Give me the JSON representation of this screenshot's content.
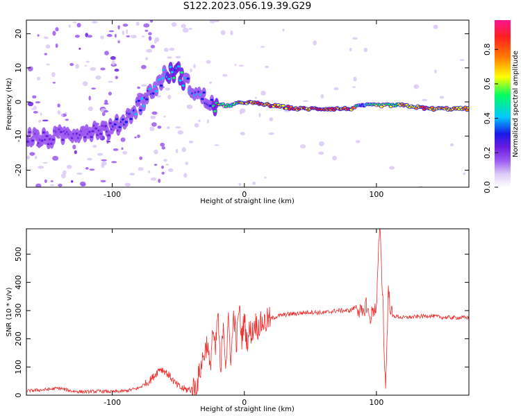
{
  "title": "S122.2023.056.19.39.G29",
  "colors": {
    "snr_line": "#ee2a2a",
    "frame": "#000000",
    "colormap": [
      "#ffffff",
      "#dcc9f6",
      "#9b59f0",
      "#6a1be0",
      "#1a1ae6",
      "#00c8ff",
      "#00ff60",
      "#ffff00",
      "#ff7a00",
      "#ff2020",
      "#ff1493"
    ]
  },
  "chart_data": [
    {
      "type": "heatmap",
      "title": "S122.2023.056.19.39.G29",
      "xlabel": "Height of straight line (km)",
      "ylabel": "Frequency (Hz)",
      "xlim": [
        -165,
        170
      ],
      "ylim": [
        -25,
        24
      ],
      "x_ticks": [
        -100,
        0,
        100
      ],
      "y_ticks": [
        -20,
        -10,
        0,
        10,
        20
      ],
      "colorbar": {
        "label": "Normalized spectral amplitude",
        "range": [
          0,
          0.97
        ],
        "ticks": [
          0.0,
          0.2,
          0.4,
          0.6,
          0.8
        ]
      },
      "ridge": {
        "x": [
          -165,
          -150,
          -130,
          -110,
          -100,
          -90,
          -80,
          -70,
          -60,
          -50,
          -45,
          -40,
          -35,
          -30,
          -25,
          -20,
          -10,
          0,
          20,
          40,
          60,
          80,
          90,
          100,
          120,
          140,
          160,
          170
        ],
        "frequency": [
          -10,
          -11,
          -9,
          -8,
          -8,
          -5,
          -1,
          3,
          8,
          9,
          6,
          4,
          2,
          1,
          -1,
          -1,
          -1,
          0,
          -1,
          -2,
          -2,
          -2,
          -1,
          -1,
          -1,
          -2,
          -2,
          -2
        ],
        "amplitude": [
          0.3,
          0.35,
          0.3,
          0.3,
          0.35,
          0.45,
          0.5,
          0.55,
          0.55,
          0.6,
          0.55,
          0.5,
          0.5,
          0.45,
          0.5,
          0.8,
          0.7,
          0.9,
          0.95,
          0.9,
          0.95,
          0.9,
          0.5,
          0.7,
          0.85,
          0.9,
          0.85,
          0.8
        ]
      }
    },
    {
      "type": "line",
      "xlabel": "Height of straight line (km)",
      "ylabel": "SNR (10 * v/v)",
      "xlim": [
        -165,
        170
      ],
      "ylim": [
        0,
        590
      ],
      "x_ticks": [
        -100,
        0,
        100
      ],
      "y_ticks": [
        0,
        100,
        200,
        300,
        400,
        500
      ],
      "series": [
        {
          "x": [
            -165,
            -150,
            -140,
            -130,
            -120,
            -110,
            -100,
            -90,
            -80,
            -72,
            -68,
            -64,
            -60,
            -56,
            -52,
            -48,
            -44,
            -40,
            -36,
            -32,
            -28,
            -26,
            -24,
            -22,
            -20,
            -18,
            -16,
            -14,
            -12,
            -10,
            -8,
            -6,
            -4,
            -2,
            0,
            2,
            4,
            6,
            8,
            10,
            12,
            14,
            16,
            18,
            20,
            22,
            25,
            30,
            40,
            50,
            60,
            70,
            80,
            85,
            90,
            92,
            95,
            98,
            100,
            102,
            103,
            104,
            105,
            106,
            107,
            108,
            109,
            110,
            112,
            115,
            120,
            130,
            140,
            150,
            160,
            170
          ],
          "y": [
            15,
            20,
            25,
            14,
            12,
            14,
            12,
            15,
            25,
            50,
            70,
            95,
            85,
            65,
            40,
            25,
            20,
            20,
            35,
            120,
            190,
            80,
            240,
            140,
            300,
            60,
            270,
            110,
            260,
            120,
            300,
            170,
            315,
            200,
            270,
            190,
            230,
            220,
            260,
            240,
            250,
            260,
            255,
            270,
            270,
            275,
            280,
            285,
            290,
            295,
            292,
            300,
            300,
            315,
            280,
            330,
            270,
            310,
            300,
            560,
            590,
            420,
            330,
            120,
            28,
            200,
            380,
            330,
            280,
            280,
            275,
            278,
            282,
            276,
            275,
            275
          ]
        }
      ]
    }
  ]
}
